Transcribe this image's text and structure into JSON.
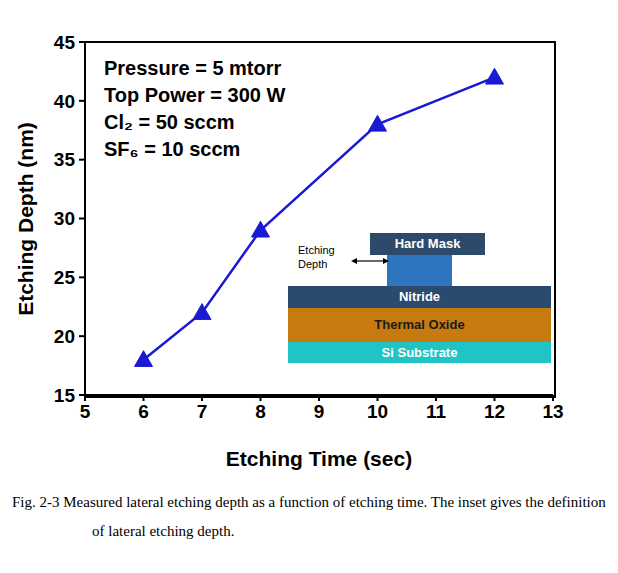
{
  "chart_data": {
    "type": "line",
    "x_label": "Etching Time (sec)",
    "y_label": "Etching Depth (nm)",
    "x": [
      6,
      7,
      8,
      10,
      12
    ],
    "series": [
      {
        "name": "Etching Depth",
        "color": "#1a1ad4",
        "marker": "triangle",
        "values": [
          18,
          22,
          29,
          38,
          42
        ]
      }
    ],
    "xlim": [
      5,
      13
    ],
    "xticks": [
      5,
      6,
      7,
      8,
      9,
      10,
      11,
      12,
      13
    ],
    "ylim": [
      15,
      45
    ],
    "yticks": [
      15,
      20,
      25,
      30,
      35,
      40,
      45
    ],
    "grid": false,
    "annotations": [
      "Pressure = 5 mtorr",
      "Top Power = 300 W",
      "Cl₂ = 50 sccm",
      "SF₆ = 10 sccm"
    ],
    "inset": {
      "hard_mask": "Hard Mask",
      "etching_depth": [
        "Etching",
        "Depth"
      ],
      "layers": [
        {
          "label": "Nitride",
          "color": "#2a4a6e"
        },
        {
          "label": "Thermal Oxide",
          "color": "#c77a10"
        },
        {
          "label": "Si Substrate",
          "color": "#20c4c4"
        }
      ]
    }
  },
  "caption": "Fig. 2-3 Measured lateral etching depth as a function of etching time. The inset gives the definition of lateral etching depth."
}
